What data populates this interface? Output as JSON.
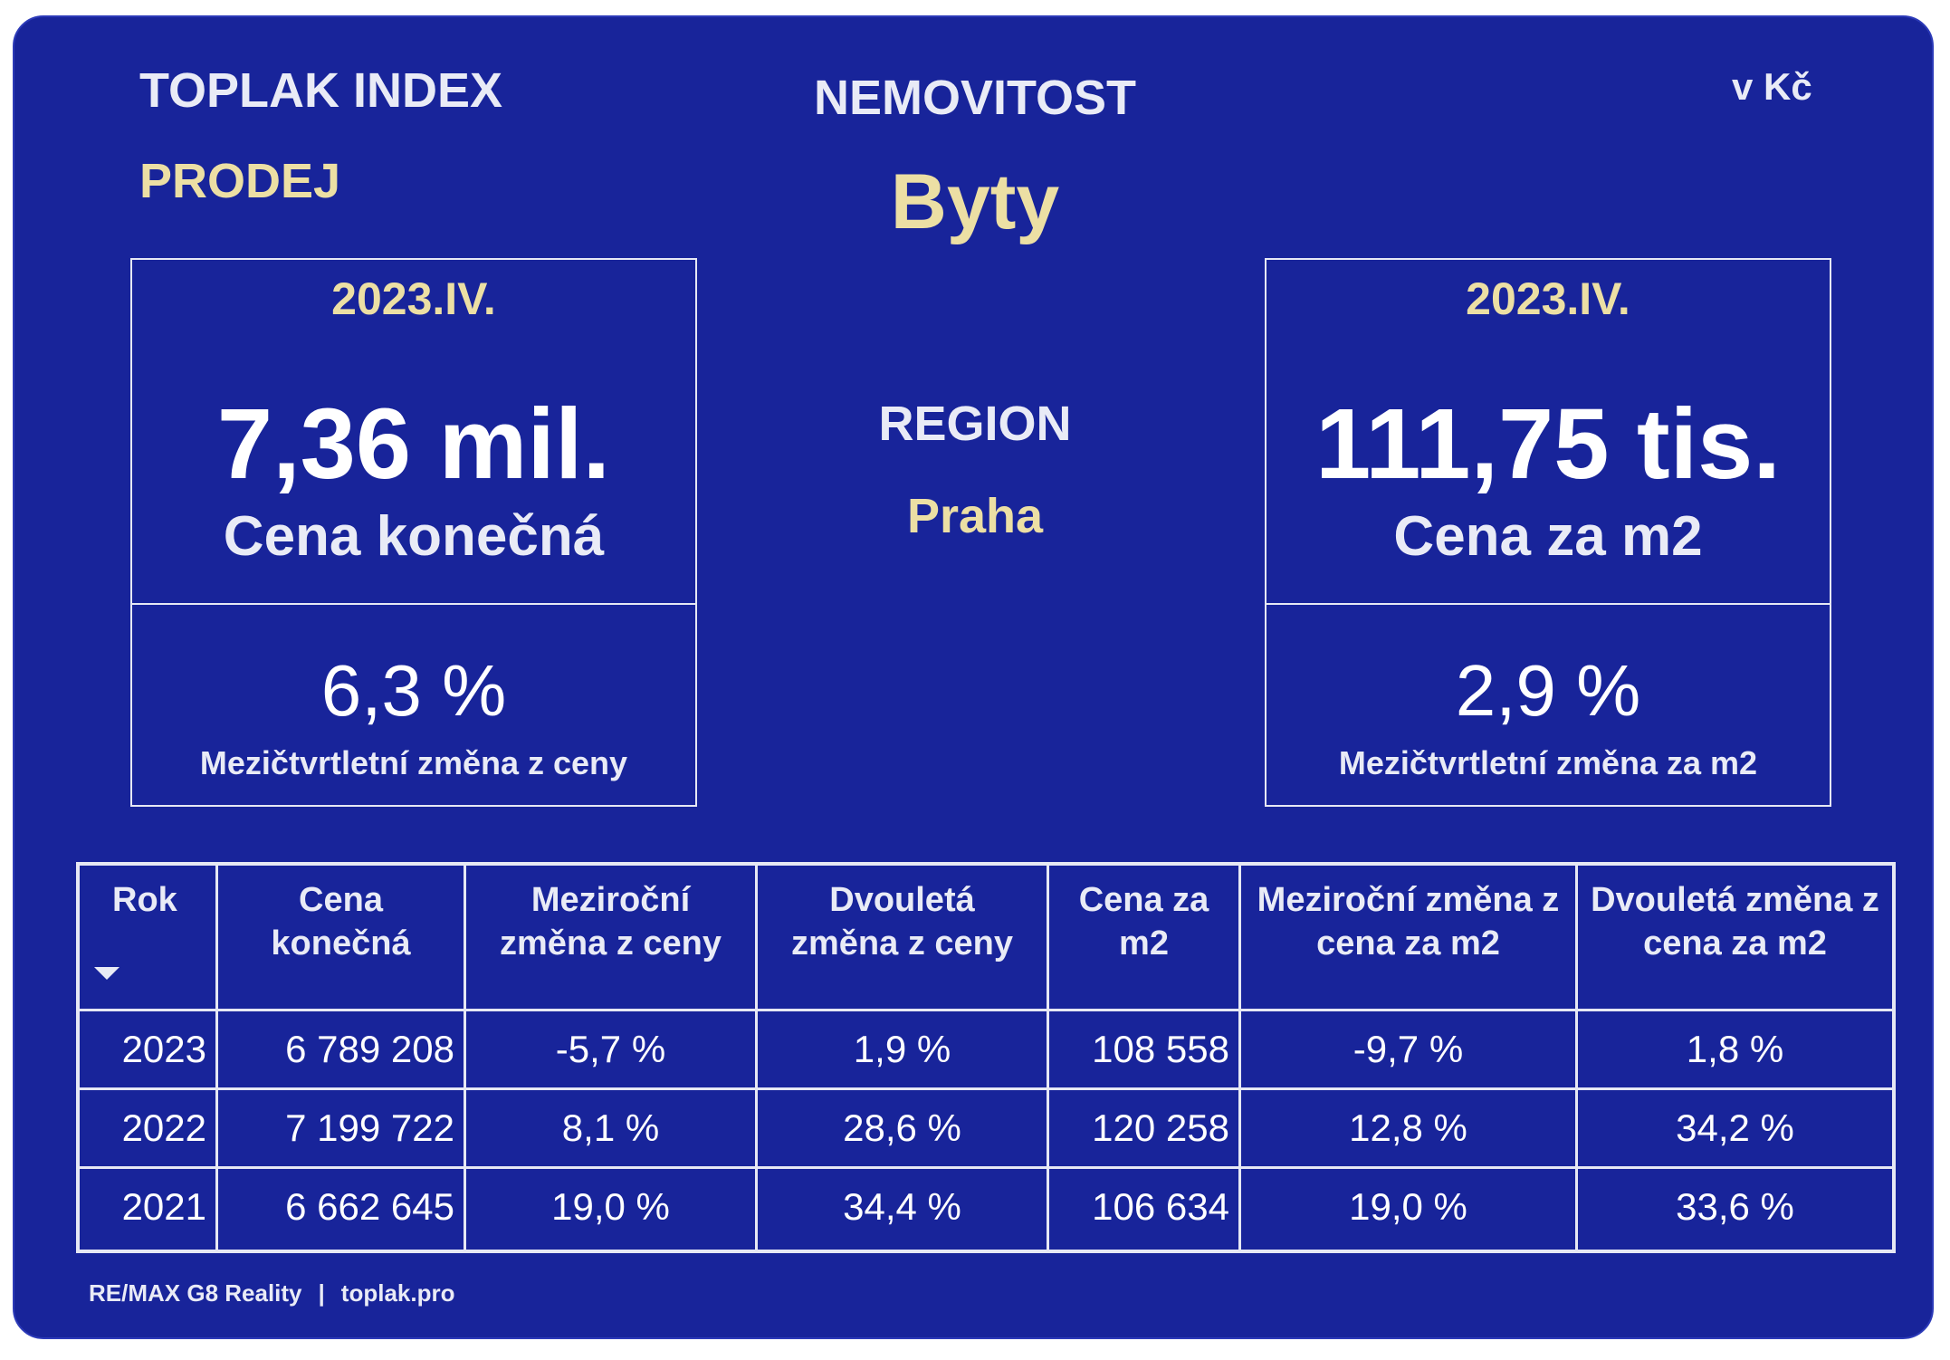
{
  "header": {
    "brand": "TOPLAK INDEX",
    "mode": "PRODEJ",
    "property_label": "NEMOVITOST",
    "property_value": "Byty",
    "currency": "v Kč",
    "region_label": "REGION",
    "region_value": "Praha"
  },
  "kpi_left": {
    "period": "2023.IV.",
    "value": "7,36 mil.",
    "caption": "Cena konečná",
    "change": "6,3 %",
    "change_caption": "Mezičtvrtletní změna z ceny"
  },
  "kpi_right": {
    "period": "2023.IV.",
    "value": "111,75 tis.",
    "caption": "Cena za m2",
    "change": "2,9 %",
    "change_caption": "Mezičtvrtletní změna za m2"
  },
  "table": {
    "headers": [
      "Rok",
      "Cena konečná",
      "Meziroční změna z ceny",
      "Dvouletá změna z ceny",
      "Cena za m2",
      "Meziroční změna z cena za m2",
      "Dvouletá změna z cena za m2"
    ],
    "sort_icon": "sort-descending-icon",
    "rows": [
      [
        "2023",
        "6 789 208",
        "-5,7 %",
        "1,9 %",
        "108 558",
        "-9,7 %",
        "1,8 %"
      ],
      [
        "2022",
        "7 199 722",
        "8,1 %",
        "28,6 %",
        "120 258",
        "12,8 %",
        "34,2 %"
      ],
      [
        "2021",
        "6 662 645",
        "19,0 %",
        "34,4 %",
        "106 634",
        "19,0 %",
        "33,6 %"
      ]
    ]
  },
  "footer": {
    "company": "RE/MAX G8 Reality",
    "separator": "|",
    "website": "toplak.pro"
  },
  "colors": {
    "background": "#18249a",
    "accent_gold": "#ecdfa4",
    "text_light": "#e9ebf6"
  }
}
